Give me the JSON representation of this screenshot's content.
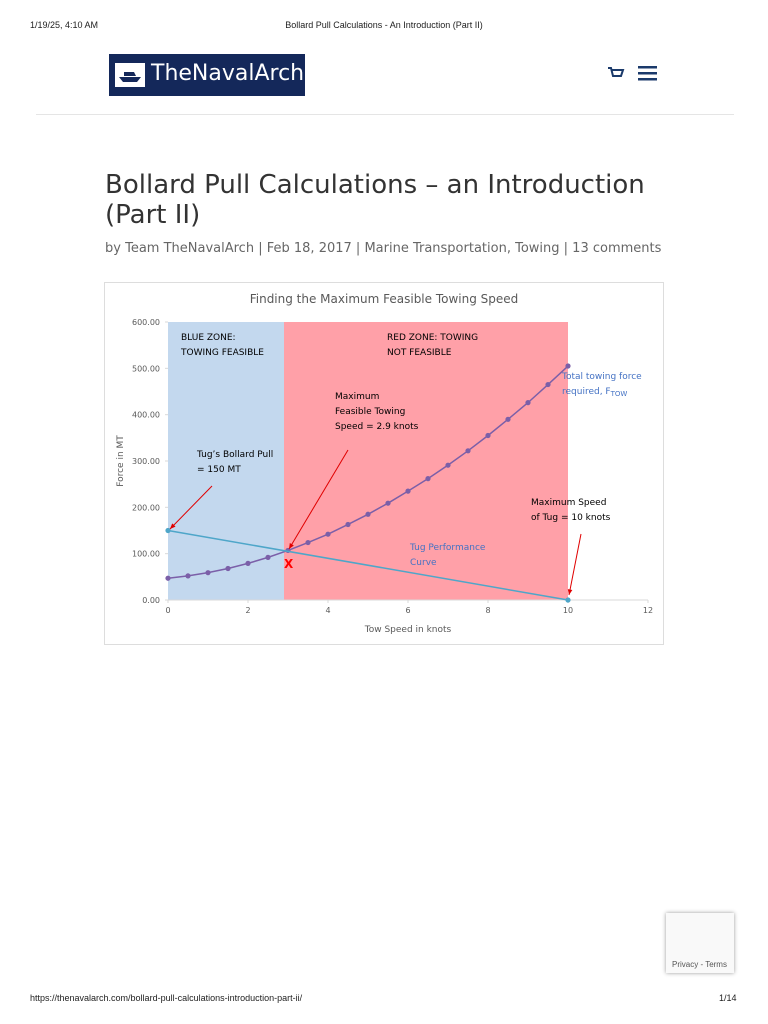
{
  "print_header": {
    "datetime": "1/19/25, 4:10 AM",
    "page_title": "Bollard Pull Calculations - An Introduction (Part II)"
  },
  "site": {
    "logo": "TheNavalArch"
  },
  "article": {
    "title": "Bollard Pull Calculations – an Introduction (Part II)",
    "meta": {
      "prefix": "by",
      "author": "Team TheNavalArch",
      "date": "Feb 18, 2017",
      "categories": [
        "Marine Transportation",
        "Towing"
      ],
      "comments": "13 comments"
    }
  },
  "figure": {
    "chart_data": {
      "type": "line",
      "title": "Finding the Maximum Feasible Towing Speed",
      "x_label": "Tow Speed in knots",
      "y_label": "Force in MT",
      "xlim": [
        0,
        12
      ],
      "xticks": [
        0,
        2,
        4,
        6,
        8,
        10,
        12
      ],
      "ylim": [
        0,
        600
      ],
      "yticks": [
        {
          "value": 0,
          "label": "0.00"
        },
        {
          "value": 100,
          "label": "100.00"
        },
        {
          "value": 200,
          "label": "200.00"
        },
        {
          "value": 300,
          "label": "300.00"
        },
        {
          "value": 400,
          "label": "400.00"
        },
        {
          "value": 500,
          "label": "500.00"
        },
        {
          "value": 600,
          "label": "600.00"
        }
      ],
      "zones": [
        {
          "x": [
            0,
            2.9
          ],
          "color": "#c3d8ee"
        },
        {
          "x": [
            2.9,
            10
          ],
          "color": "#ffa0a8"
        }
      ],
      "series": [
        {
          "color": "#7b5fa8",
          "x": [
            0,
            0.5,
            1,
            1.5,
            2,
            2.5,
            3,
            3.5,
            4,
            4.5,
            5,
            5.5,
            6,
            6.5,
            7,
            7.5,
            8,
            8.5,
            9,
            9.5,
            10
          ],
          "values": [
            47,
            52,
            59,
            68,
            79,
            92,
            107,
            124,
            142,
            163,
            185,
            209,
            235,
            262,
            291,
            322,
            355,
            390,
            426,
            465,
            505
          ]
        },
        {
          "color": "#4ea6c9",
          "x": [
            0,
            10
          ],
          "values": [
            150,
            0
          ]
        }
      ],
      "annotations": [
        {
          "lines": [
            "BLUE ZONE:",
            "TOWING FEASIBLE"
          ],
          "color": "#000000"
        },
        {
          "lines": [
            "RED ZONE: TOWING",
            "NOT FEASIBLE"
          ],
          "color": "#000000"
        },
        {
          "lines": [
            "Maximum",
            "Feasible Towing",
            "Speed = 2.9 knots"
          ],
          "color": "#000000"
        },
        {
          "lines": [
            "Tug’s Bollard Pull",
            "= 150 MT"
          ],
          "color": "#000000"
        },
        {
          "lines": [
            "Total towing force",
            "required, F"
          ],
          "sub": "TOW",
          "color": "#4472c4"
        },
        {
          "lines": [
            "Maximum Speed",
            "of Tug = 10 knots"
          ],
          "color": "#000000"
        },
        {
          "lines": [
            "Tug Performance",
            "Curve"
          ],
          "color": "#4472c4"
        },
        {
          "lines": [
            "X"
          ],
          "color": "#ff0000"
        }
      ]
    }
  },
  "recaptcha": {
    "links": "Privacy - Terms"
  },
  "print_footer": {
    "url": "https://thenavalarch.com/bollard-pull-calculations-introduction-part-ii/",
    "page": "1/14"
  }
}
